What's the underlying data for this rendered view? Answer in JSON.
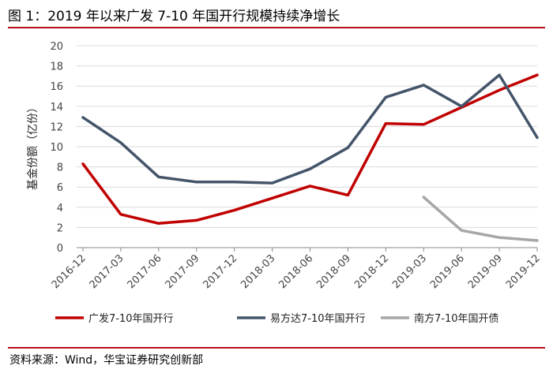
{
  "title": "图 1：2019 年以来广发 7-10 年国开行规模持续净增长",
  "source": "资料来源：Wind，华宝证券研究创新部",
  "chart_data": {
    "type": "line",
    "ylabel": "基金份额（亿份）",
    "ylim": [
      0,
      20
    ],
    "yticks": [
      0,
      2,
      4,
      6,
      8,
      10,
      12,
      14,
      16,
      18,
      20
    ],
    "categories": [
      "2016-12",
      "2017-03",
      "2017-06",
      "2017-09",
      "2017-12",
      "2018-03",
      "2018-06",
      "2018-09",
      "2018-12",
      "2019-03",
      "2019-06",
      "2019-09",
      "2019-12"
    ],
    "grid": true,
    "legend_position": "bottom",
    "series": [
      {
        "name": "广发7-10年国开行",
        "color": "#c00000",
        "values": [
          8.3,
          3.3,
          2.4,
          2.7,
          3.7,
          4.9,
          6.1,
          5.2,
          12.3,
          12.2,
          13.9,
          15.6,
          17.1
        ]
      },
      {
        "name": "易方达7-10年国开行",
        "color": "#44546a",
        "values": [
          12.9,
          10.4,
          7.0,
          6.5,
          6.5,
          6.4,
          7.8,
          9.9,
          14.9,
          16.1,
          14.0,
          17.1,
          10.9
        ]
      },
      {
        "name": "南方7-10年国开债",
        "color": "#a6a6a6",
        "values": [
          null,
          null,
          null,
          null,
          null,
          null,
          null,
          null,
          null,
          5.0,
          1.7,
          1.0,
          0.7
        ]
      }
    ]
  }
}
